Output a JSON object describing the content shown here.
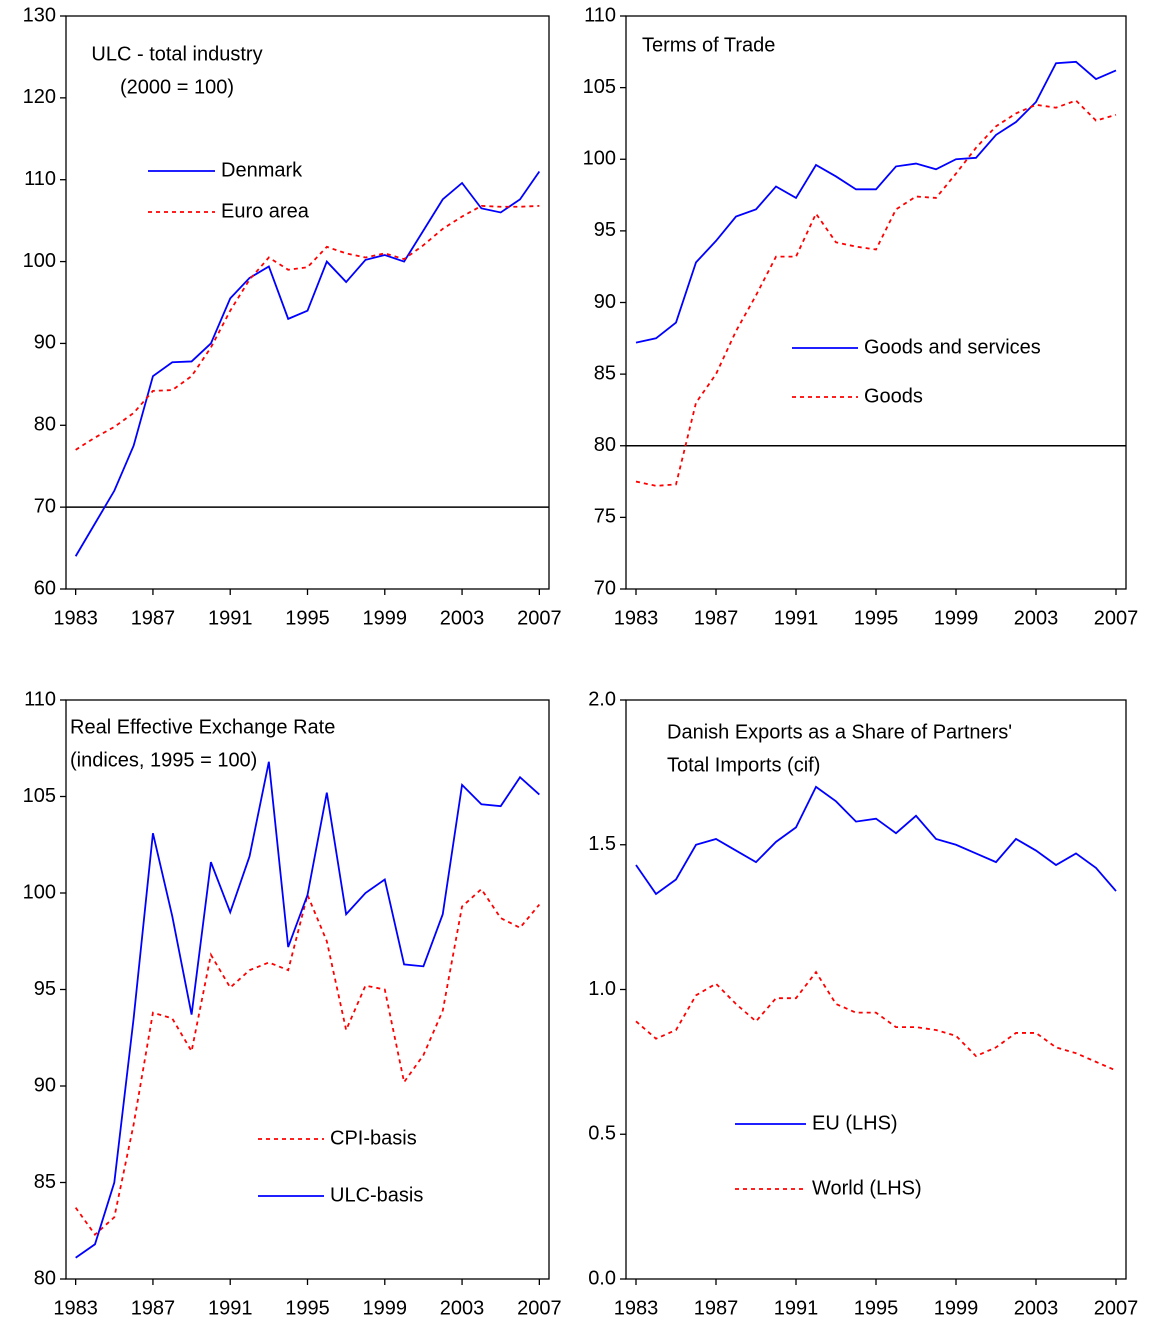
{
  "chart_data": [
    {
      "type": "line",
      "title": [
        "ULC - total industry",
        "(2000 = 100)"
      ],
      "x": [
        1983,
        1984,
        1985,
        1986,
        1987,
        1988,
        1989,
        1990,
        1991,
        1992,
        1993,
        1994,
        1995,
        1996,
        1997,
        1998,
        1999,
        2000,
        2001,
        2002,
        2003,
        2004,
        2005,
        2006,
        2007
      ],
      "xlim": [
        1982.5,
        2007.5
      ],
      "xticks": [
        1983,
        1987,
        1991,
        1995,
        1999,
        2003,
        2007
      ],
      "ylim": [
        60,
        130
      ],
      "yticks": [
        60,
        70,
        80,
        90,
        100,
        110,
        120,
        130
      ],
      "hline": 70,
      "series": [
        {
          "name": "Denmark",
          "color": "#0000ff",
          "dash": false,
          "values": [
            64,
            68,
            72,
            77.5,
            86,
            87.7,
            87.8,
            90,
            95.5,
            98,
            99.4,
            93,
            94,
            100,
            97.5,
            100.2,
            100.8,
            100,
            103.8,
            107.6,
            109.6,
            106.5,
            106,
            107.6,
            111
          ]
        },
        {
          "name": "Euro area",
          "color": "#ff0000",
          "dash": true,
          "values": [
            77,
            78.5,
            79.8,
            81.5,
            84.2,
            84.3,
            86,
            89.5,
            94,
            97.8,
            100.5,
            99,
            99.3,
            101.8,
            101,
            100.5,
            101,
            100.3,
            102,
            104,
            105.5,
            106.8,
            106.7,
            106.7,
            106.8
          ]
        }
      ]
    },
    {
      "type": "line",
      "title": [
        "Terms of Trade"
      ],
      "x": [
        1983,
        1984,
        1985,
        1986,
        1987,
        1988,
        1989,
        1990,
        1991,
        1992,
        1993,
        1994,
        1995,
        1996,
        1997,
        1998,
        1999,
        2000,
        2001,
        2002,
        2003,
        2004,
        2005,
        2006,
        2007
      ],
      "xlim": [
        1982.5,
        2007.5
      ],
      "xticks": [
        1983,
        1987,
        1991,
        1995,
        1999,
        2003,
        2007
      ],
      "ylim": [
        70,
        110
      ],
      "yticks": [
        70,
        75,
        80,
        85,
        90,
        95,
        100,
        105,
        110
      ],
      "hline": 80,
      "series": [
        {
          "name": "Goods and services",
          "color": "#0000ff",
          "dash": false,
          "values": [
            87.2,
            87.5,
            88.6,
            92.8,
            94.3,
            96,
            96.5,
            98.1,
            97.3,
            99.6,
            98.8,
            97.9,
            97.9,
            99.5,
            99.7,
            99.3,
            100,
            100.1,
            101.7,
            102.6,
            104,
            106.7,
            106.8,
            105.6,
            106.2
          ]
        },
        {
          "name": "Goods",
          "color": "#ff0000",
          "dash": true,
          "values": [
            77.5,
            77.2,
            77.3,
            83,
            85,
            88,
            90.5,
            93.2,
            93.2,
            96.2,
            94.2,
            93.9,
            93.7,
            96.5,
            97.4,
            97.3,
            99,
            100.8,
            102.3,
            103.2,
            103.8,
            103.6,
            104.1,
            102.7,
            103.1
          ]
        }
      ]
    },
    {
      "type": "line",
      "title": [
        "Real Effective Exchange Rate",
        "(indices, 1995 = 100)"
      ],
      "x": [
        1983,
        1984,
        1985,
        1986,
        1987,
        1988,
        1989,
        1990,
        1991,
        1992,
        1993,
        1994,
        1995,
        1996,
        1997,
        1998,
        1999,
        2000,
        2001,
        2002,
        2003,
        2004,
        2005,
        2006,
        2007
      ],
      "xlim": [
        1982.5,
        2007.5
      ],
      "xticks": [
        1983,
        1987,
        1991,
        1995,
        1999,
        2003,
        2007
      ],
      "ylim": [
        80,
        110
      ],
      "yticks": [
        80,
        85,
        90,
        95,
        100,
        105,
        110
      ],
      "series": [
        {
          "name": "CPI-basis",
          "color": "#ff0000",
          "dash": true,
          "values": [
            83.7,
            82.3,
            83.2,
            88,
            93.8,
            93.5,
            91.8,
            96.8,
            95.1,
            96,
            96.4,
            96,
            99.9,
            97.5,
            92.9,
            95.2,
            95,
            90.2,
            91.6,
            93.9,
            99.3,
            100.2,
            98.7,
            98.2,
            99.4
          ]
        },
        {
          "name": "ULC-basis",
          "color": "#0000ff",
          "dash": false,
          "values": [
            81.1,
            81.8,
            85,
            93.5,
            103.1,
            98.8,
            93.7,
            101.6,
            99,
            101.9,
            106.8,
            97.2,
            99.9,
            105.2,
            98.9,
            100,
            100.7,
            96.3,
            96.2,
            98.9,
            105.6,
            104.6,
            104.5,
            106,
            105.1
          ]
        }
      ]
    },
    {
      "type": "line",
      "title": [
        "Danish Exports as a Share of Partners'",
        "Total Imports (cif)"
      ],
      "x": [
        1983,
        1984,
        1985,
        1986,
        1987,
        1988,
        1989,
        1990,
        1991,
        1992,
        1993,
        1994,
        1995,
        1996,
        1997,
        1998,
        1999,
        2000,
        2001,
        2002,
        2003,
        2004,
        2005,
        2006,
        2007
      ],
      "xlim": [
        1982.5,
        2007.5
      ],
      "xticks": [
        1983,
        1987,
        1991,
        1995,
        1999,
        2003,
        2007
      ],
      "ylim": [
        0,
        2
      ],
      "yticks": [
        {
          "value": 0,
          "label": "0.0"
        },
        0.5,
        {
          "value": 1,
          "label": "1.0"
        },
        1.5,
        {
          "value": 2,
          "label": "2.0"
        }
      ],
      "series": [
        {
          "name": "EU (LHS)",
          "color": "#0000ff",
          "dash": false,
          "values": [
            1.43,
            1.33,
            1.38,
            1.5,
            1.52,
            1.48,
            1.44,
            1.51,
            1.56,
            1.7,
            1.65,
            1.58,
            1.59,
            1.54,
            1.6,
            1.52,
            1.5,
            1.47,
            1.44,
            1.52,
            1.48,
            1.43,
            1.47,
            1.42,
            1.34
          ]
        },
        {
          "name": "World (LHS)",
          "color": "#ff0000",
          "dash": true,
          "values": [
            0.89,
            0.83,
            0.86,
            0.98,
            1.02,
            0.95,
            0.89,
            0.97,
            0.97,
            1.06,
            0.95,
            0.92,
            0.92,
            0.87,
            0.87,
            0.86,
            0.84,
            0.77,
            0.8,
            0.85,
            0.85,
            0.8,
            0.78,
            0.75,
            0.72
          ]
        }
      ]
    }
  ]
}
